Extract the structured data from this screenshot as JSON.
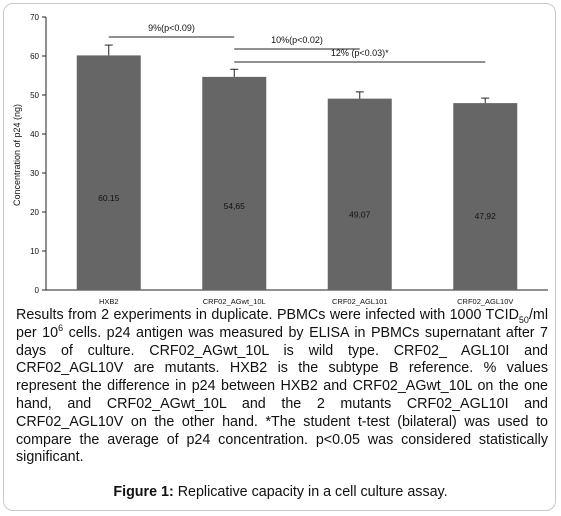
{
  "chart_data": {
    "type": "bar",
    "categories": [
      "HXB2",
      "CRF02_AGwt_10L",
      "CRF02_AGL101",
      "CRF02_AGL10V"
    ],
    "values": [
      60.15,
      54.65,
      49.07,
      47.92
    ],
    "value_labels": [
      "60.15",
      "54,65",
      "49,07",
      "47,92"
    ],
    "error_upper": [
      62.8,
      56.6,
      50.8,
      49.2
    ],
    "ylabel": "Concentration of p24 (ng)",
    "ylim": [
      0,
      70
    ],
    "yticks": [
      "0",
      "10",
      "20",
      "30",
      "40",
      "50",
      "60",
      "70"
    ],
    "bar_color": "#666666",
    "annotations": [
      {
        "text": "9%(p<0.09)",
        "from": 0,
        "to": 1
      },
      {
        "text": "10%(p<0.02)",
        "from": 1,
        "to": 2
      },
      {
        "text": "12% (p<0.03)*",
        "from": 1,
        "to": 3
      }
    ]
  },
  "caption": {
    "part1": "Results from 2 experiments in duplicate. PBMCs were infected with 1000 TCID",
    "sub": "50",
    "part2": "/ml per 10",
    "sup": "6",
    "part3": " cells. p24 antigen was measured by ELISA in PBMCs supernatant after 7 days of culture. CRF02_AGwt_10L is wild type. CRF02_ AGL10I and CRF02_AGL10V are mutants. HXB2 is the subtype B reference. % values represent the difference in p24 between HXB2 and CRF02_AGwt_10L on the one hand, and CRF02_AGwt_10L and the 2 mutants CRF02_AGL10I and CRF02_AGL10V on the other hand. *The student t-test (bilateral) was used to compare the average of p24 concentration. p<0.05 was considered statistically significant."
  },
  "figure": {
    "label": "Figure 1:",
    "title": " Replicative capacity in a cell culture assay."
  }
}
